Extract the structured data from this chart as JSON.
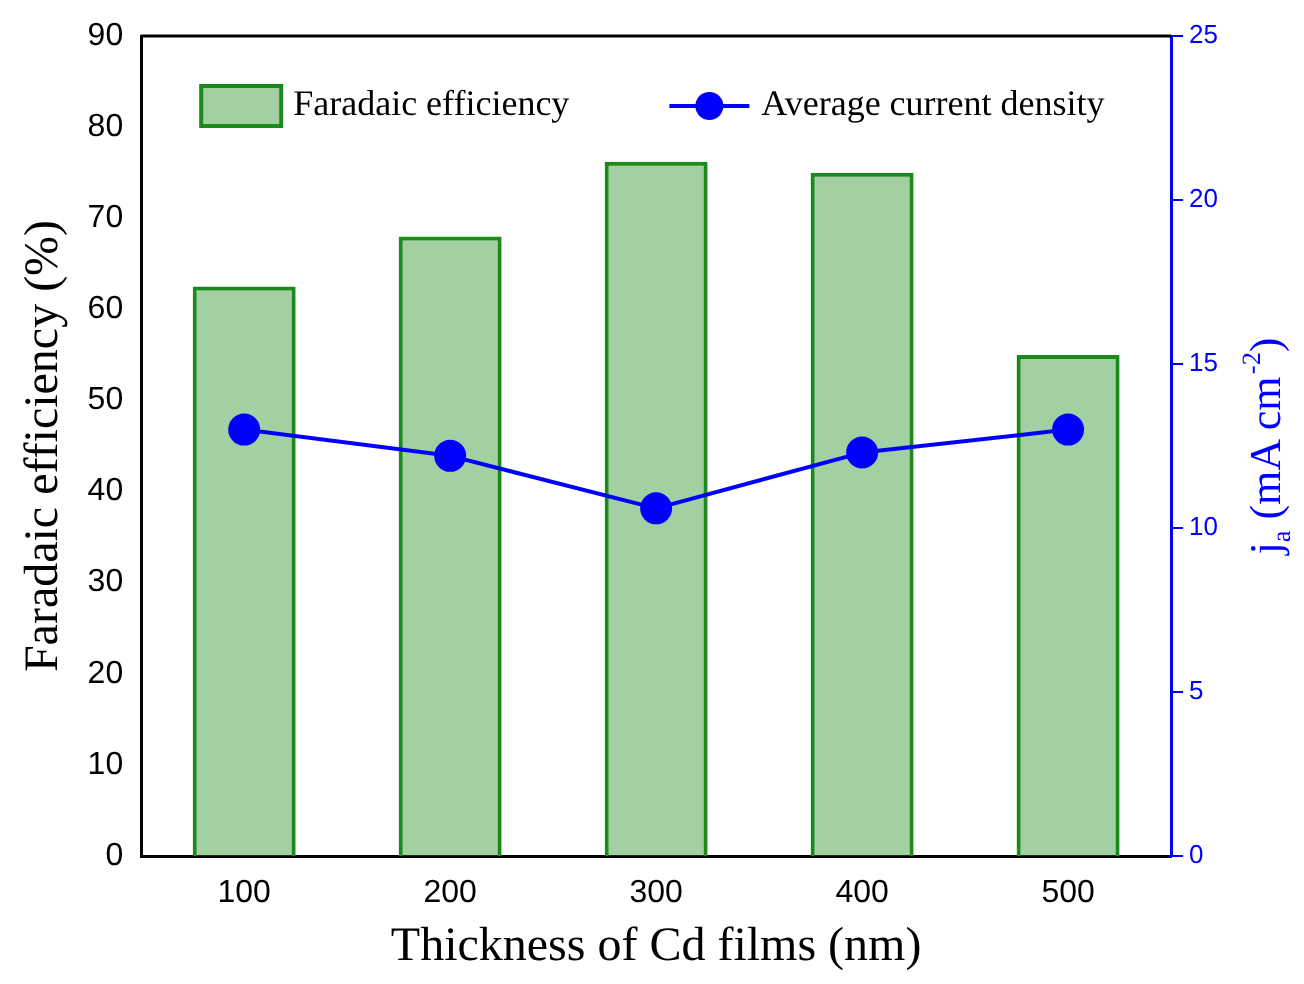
{
  "chart_data": {
    "type": "bar",
    "xlabel": "Thickness of Cd films (nm)",
    "ylabel": "Faradaic efficiency (%)",
    "y2label": "j$_{a}$ (mA cm$^{-2}$)",
    "categories": [
      "100",
      "200",
      "300",
      "400",
      "500"
    ],
    "series": [
      {
        "name": "Faradaic efficiency",
        "color": "#1a8a1a",
        "values": [
          62.5,
          68,
          76.2,
          75,
          55
        ]
      },
      {
        "name": "Average current density",
        "type": "line",
        "color": "#0000ff",
        "axis": "y2",
        "values": [
          13.0,
          12.2,
          10.6,
          12.3,
          13.0
        ]
      }
    ],
    "ylim": [
      0,
      90
    ],
    "yticks": [
      0,
      10,
      20,
      30,
      40,
      50,
      60,
      70,
      80,
      90
    ],
    "y2lim": [
      0,
      25
    ],
    "y2ticks": [
      0,
      5,
      10,
      15,
      20,
      25
    ],
    "legend": "top",
    "marker": "circle",
    "grid": false
  }
}
